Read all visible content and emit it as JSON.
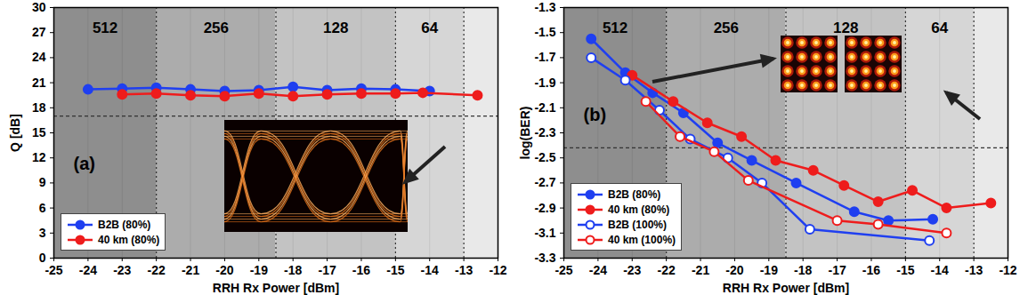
{
  "chart_data": [
    {
      "type": "line",
      "panel_label": "(a)",
      "x_label": "RRH Rx Power [dBm]",
      "y_label": "Q [dB]",
      "xlim": [
        -25,
        -12
      ],
      "xticks": [
        -25,
        -24,
        -23,
        -22,
        -21,
        -20,
        -19,
        -18,
        -17,
        -16,
        -15,
        -14,
        -13,
        -12
      ],
      "ylim": [
        0,
        30
      ],
      "yticks": [
        0,
        3,
        6,
        9,
        12,
        15,
        18,
        21,
        24,
        27,
        30
      ],
      "regions": [
        {
          "label": "512",
          "x1": -25,
          "x2": -22
        },
        {
          "label": "256",
          "x1": -22,
          "x2": -18.5
        },
        {
          "label": "128",
          "x1": -18.5,
          "x2": -15
        },
        {
          "label": "64",
          "x1": -15,
          "x2": -13
        },
        {
          "label": null,
          "x1": -13,
          "x2": -12
        }
      ],
      "threshold": 17,
      "legend": "bottom-left",
      "series": [
        {
          "name": "B2B (80%)",
          "color": "#1f3ff0",
          "marker": "circle",
          "x": [
            -24,
            -23,
            -22,
            -21,
            -20,
            -19,
            -18,
            -17,
            -16,
            -15,
            -14
          ],
          "values": [
            20.2,
            20.3,
            20.4,
            20.2,
            20.0,
            20.1,
            20.5,
            20.1,
            20.3,
            20.2,
            20.0
          ]
        },
        {
          "name": "40 km (80%)",
          "color": "#ee1c1c",
          "marker": "circle",
          "x": [
            -23,
            -22,
            -21,
            -20,
            -19,
            -18,
            -17,
            -16,
            -15,
            -14.2,
            -12.6
          ],
          "values": [
            19.6,
            19.7,
            19.5,
            19.4,
            19.7,
            19.4,
            19.6,
            19.7,
            19.7,
            19.8,
            19.5
          ]
        }
      ]
    },
    {
      "type": "line",
      "panel_label": "(b)",
      "x_label": "RRH Rx Power [dBm]",
      "y_label": "log(BER)",
      "xlim": [
        -25,
        -12
      ],
      "xticks": [
        -25,
        -24,
        -23,
        -22,
        -21,
        -20,
        -19,
        -18,
        -17,
        -16,
        -15,
        -14,
        -13,
        -12
      ],
      "ylim": [
        -3.3,
        -1.3
      ],
      "yticks": [
        -3.3,
        -3.1,
        -2.9,
        -2.7,
        -2.5,
        -2.3,
        -2.1,
        -1.9,
        -1.7,
        -1.5,
        -1.3
      ],
      "regions": [
        {
          "label": "512",
          "x1": -25,
          "x2": -22
        },
        {
          "label": "256",
          "x1": -22,
          "x2": -18.5
        },
        {
          "label": "128",
          "x1": -18.5,
          "x2": -15
        },
        {
          "label": "64",
          "x1": -15,
          "x2": -13
        },
        {
          "label": null,
          "x1": -13,
          "x2": -12
        }
      ],
      "threshold": -2.42,
      "legend": "bottom-left",
      "series": [
        {
          "name": "B2B (80%)",
          "color": "#1f3ff0",
          "marker": "circle",
          "x": [
            -24.2,
            -23.2,
            -22.4,
            -21.5,
            -20.5,
            -19.5,
            -18.2,
            -16.5,
            -15.5,
            -14.2
          ],
          "values": [
            -1.55,
            -1.82,
            -1.98,
            -2.14,
            -2.38,
            -2.52,
            -2.7,
            -2.93,
            -3.0,
            -2.99
          ]
        },
        {
          "name": "40 km (80%)",
          "color": "#ee1c1c",
          "marker": "circle",
          "x": [
            -23.0,
            -21.8,
            -20.8,
            -19.8,
            -18.8,
            -17.7,
            -16.8,
            -15.8,
            -14.8,
            -13.8,
            -12.5
          ],
          "values": [
            -1.84,
            -2.05,
            -2.22,
            -2.33,
            -2.52,
            -2.6,
            -2.72,
            -2.85,
            -2.76,
            -2.9,
            -2.86
          ]
        },
        {
          "name": "B2B (100%)",
          "color": "#1f3ff0",
          "marker": "open circle",
          "x": [
            -24.2,
            -23.2,
            -22.2,
            -21.3,
            -20.2,
            -19.2,
            -17.8,
            -14.3
          ],
          "values": [
            -1.7,
            -1.88,
            -2.12,
            -2.35,
            -2.5,
            -2.7,
            -3.07,
            -3.16
          ]
        },
        {
          "name": "40 km (100%)",
          "color": "#ee1c1c",
          "marker": "open circle",
          "x": [
            -22.6,
            -21.6,
            -20.6,
            -19.6,
            -17.0,
            -15.8,
            -13.8
          ],
          "values": [
            -2.05,
            -2.33,
            -2.45,
            -2.68,
            -3.0,
            -3.03,
            -3.1
          ]
        }
      ]
    }
  ]
}
